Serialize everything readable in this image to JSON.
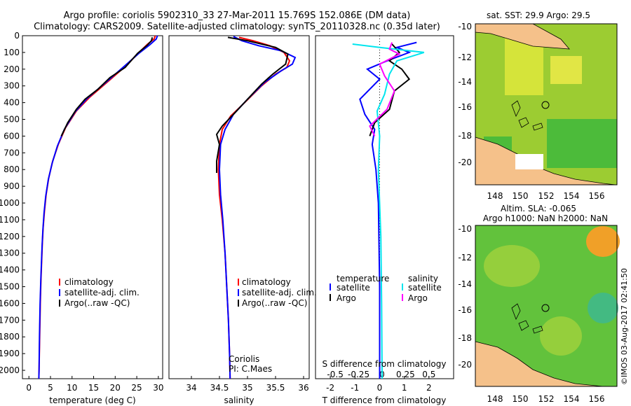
{
  "title": {
    "line1": "Argo profile: coriolis 5902310_33 27-Mar-2011 15.769S 152.086E (DM data)",
    "line2": "Climatology: CARS2009. Satellite-adjusted climatology: synTS_20110328.nc (0.35d later)"
  },
  "colors": {
    "climatology": "#ff0000",
    "satellite": "#0000ff",
    "argo": "#000000",
    "sal_satellite": "#00e5ee",
    "sal_argo": "#ff00ff"
  },
  "chart_data": [
    {
      "type": "line",
      "id": "temperature",
      "xlabel": "temperature (deg C)",
      "xlim": [
        -1.5,
        31
      ],
      "xticks": [
        0,
        5,
        10,
        15,
        20,
        25,
        30
      ],
      "ylim": [
        0,
        2050
      ],
      "yticks": [
        0,
        100,
        200,
        300,
        400,
        500,
        600,
        700,
        800,
        900,
        1000,
        1100,
        1200,
        1300,
        1400,
        1500,
        1600,
        1700,
        1800,
        1900,
        2000
      ],
      "legend": [
        "climatology",
        "satellite-adj. clim.",
        "Argo(..raw -QC)"
      ],
      "series": [
        {
          "name": "climatology",
          "color_key": "climatology",
          "points": [
            [
              29.3,
              0
            ],
            [
              29,
              20
            ],
            [
              27.5,
              50
            ],
            [
              25.5,
              100
            ],
            [
              22.5,
              180
            ],
            [
              18.5,
              270
            ],
            [
              14,
              370
            ],
            [
              11,
              450
            ],
            [
              8.5,
              550
            ],
            [
              6.8,
              650
            ],
            [
              5.5,
              750
            ],
            [
              4.6,
              850
            ],
            [
              4,
              950
            ],
            [
              3.6,
              1050
            ],
            [
              3.3,
              1150
            ],
            [
              3.1,
              1250
            ],
            [
              2.95,
              1350
            ],
            [
              2.8,
              1450
            ],
            [
              2.65,
              1600
            ],
            [
              2.5,
              1800
            ],
            [
              2.35,
              2000
            ],
            [
              2.3,
              2050
            ]
          ]
        },
        {
          "name": "satellite-adj. clim.",
          "color_key": "satellite",
          "points": [
            [
              29.8,
              0
            ],
            [
              29.5,
              20
            ],
            [
              28,
              55
            ],
            [
              25.5,
              105
            ],
            [
              22,
              185
            ],
            [
              18,
              275
            ],
            [
              13.5,
              375
            ],
            [
              10.7,
              455
            ],
            [
              8.2,
              560
            ],
            [
              6.6,
              660
            ],
            [
              5.4,
              760
            ],
            [
              4.5,
              860
            ],
            [
              3.9,
              960
            ],
            [
              3.5,
              1060
            ],
            [
              3.25,
              1160
            ],
            [
              3.05,
              1260
            ],
            [
              2.9,
              1360
            ],
            [
              2.75,
              1460
            ],
            [
              2.6,
              1600
            ],
            [
              2.45,
              1800
            ],
            [
              2.35,
              2000
            ],
            [
              2.3,
              2050
            ]
          ]
        },
        {
          "name": "Argo(..raw -QC)",
          "color_key": "argo",
          "points": [
            [
              28.6,
              10
            ],
            [
              28.4,
              30
            ],
            [
              27.5,
              55
            ],
            [
              25.2,
              105
            ],
            [
              22.3,
              190
            ],
            [
              18.8,
              250
            ],
            [
              16,
              320
            ],
            [
              13,
              380
            ],
            [
              11,
              440
            ],
            [
              9,
              520
            ],
            [
              7.5,
              600
            ]
          ]
        }
      ]
    },
    {
      "type": "line",
      "id": "salinity",
      "xlabel": "salinity",
      "xlim": [
        33.6,
        36.1
      ],
      "xticks": [
        34,
        34.5,
        35,
        35.5,
        36
      ],
      "ylim": [
        0,
        2050
      ],
      "legend": [
        "climatology",
        "satellite-adj. clim.",
        "Argo(..raw -QC)"
      ],
      "annotation": [
        "Coriolis",
        "PI: C.Maes"
      ],
      "series": [
        {
          "name": "climatology",
          "color_key": "climatology",
          "points": [
            [
              34.85,
              10
            ],
            [
              35.1,
              30
            ],
            [
              35.4,
              60
            ],
            [
              35.65,
              100
            ],
            [
              35.75,
              150
            ],
            [
              35.7,
              190
            ],
            [
              35.5,
              230
            ],
            [
              35.25,
              300
            ],
            [
              34.95,
              400
            ],
            [
              34.7,
              480
            ],
            [
              34.55,
              560
            ],
            [
              34.5,
              650
            ],
            [
              34.48,
              800
            ],
            [
              34.5,
              950
            ],
            [
              34.55,
              1100
            ],
            [
              34.6,
              1300
            ],
            [
              34.63,
              1500
            ],
            [
              34.66,
              1700
            ],
            [
              34.68,
              1900
            ],
            [
              34.69,
              2050
            ]
          ]
        },
        {
          "name": "satellite-adj. clim.",
          "color_key": "satellite",
          "points": [
            [
              34.75,
              5
            ],
            [
              34.9,
              30
            ],
            [
              35.2,
              60
            ],
            [
              35.6,
              90
            ],
            [
              35.85,
              130
            ],
            [
              35.8,
              170
            ],
            [
              35.6,
              210
            ],
            [
              35.3,
              280
            ],
            [
              35,
              380
            ],
            [
              34.75,
              470
            ],
            [
              34.6,
              560
            ],
            [
              34.52,
              650
            ],
            [
              34.5,
              800
            ],
            [
              34.52,
              950
            ],
            [
              34.56,
              1100
            ],
            [
              34.6,
              1300
            ],
            [
              34.63,
              1500
            ],
            [
              34.66,
              1700
            ],
            [
              34.68,
              1900
            ],
            [
              34.69,
              2050
            ]
          ]
        },
        {
          "name": "Argo(..raw -QC)",
          "color_key": "argo",
          "points": [
            [
              34.65,
              10
            ],
            [
              35,
              30
            ],
            [
              35.5,
              70
            ],
            [
              35.72,
              110
            ],
            [
              35.68,
              170
            ],
            [
              35.45,
              230
            ],
            [
              35.25,
              290
            ],
            [
              35,
              380
            ],
            [
              34.75,
              470
            ],
            [
              34.55,
              540
            ],
            [
              34.45,
              590
            ],
            [
              34.5,
              650
            ],
            [
              34.45,
              750
            ],
            [
              34.45,
              820
            ]
          ]
        }
      ]
    },
    {
      "type": "line",
      "id": "difference",
      "xlabel": "T difference from climatology",
      "xlabel2": "S difference from climatology",
      "xlim": [
        -2.6,
        3
      ],
      "xticks": [
        -2,
        -1,
        0,
        1,
        2
      ],
      "xticks_s": [
        -0.5,
        -0.25,
        0,
        0.25,
        0.5
      ],
      "ylim": [
        0,
        2050
      ],
      "legend_temperature": {
        "title": "temperature",
        "items": [
          "satellite",
          "Argo"
        ]
      },
      "legend_salinity": {
        "title": "salinity",
        "items": [
          "satellite",
          "Argo"
        ]
      },
      "series": [
        {
          "name": "temperature satellite",
          "color_key": "satellite",
          "points": [
            [
              1.5,
              40
            ],
            [
              0.7,
              70
            ],
            [
              1.2,
              100
            ],
            [
              0.3,
              150
            ],
            [
              -0.5,
              200
            ],
            [
              0,
              260
            ],
            [
              -0.8,
              380
            ],
            [
              -0.6,
              470
            ],
            [
              -0.2,
              560
            ],
            [
              -0.3,
              650
            ],
            [
              -0.15,
              800
            ],
            [
              -0.05,
              1000
            ],
            [
              0,
              1500
            ],
            [
              0,
              2050
            ]
          ]
        },
        {
          "name": "temperature Argo",
          "color_key": "argo",
          "points": [
            [
              0.5,
              50
            ],
            [
              0.8,
              100
            ],
            [
              0.4,
              150
            ],
            [
              0.9,
              200
            ],
            [
              1.2,
              260
            ],
            [
              0.6,
              330
            ],
            [
              0.4,
              440
            ],
            [
              -0.2,
              520
            ],
            [
              -0.4,
              600
            ]
          ]
        },
        {
          "name": "salinity satellite",
          "color_key": "sal_satellite",
          "points": [
            [
              -1.1,
              50
            ],
            [
              0,
              70
            ],
            [
              1.8,
              100
            ],
            [
              0.7,
              150
            ],
            [
              0.4,
              230
            ],
            [
              0.2,
              350
            ],
            [
              -0.1,
              450
            ],
            [
              0,
              600
            ],
            [
              -0.05,
              800
            ],
            [
              0.05,
              1200
            ],
            [
              0.08,
              1600
            ],
            [
              0.1,
              2050
            ]
          ]
        },
        {
          "name": "salinity Argo",
          "color_key": "sal_argo",
          "points": [
            [
              0.5,
              40
            ],
            [
              0.4,
              80
            ],
            [
              0.8,
              110
            ],
            [
              0,
              170
            ],
            [
              0.2,
              240
            ],
            [
              0.6,
              330
            ],
            [
              0.3,
              440
            ],
            [
              -0.4,
              540
            ],
            [
              -0.2,
              600
            ]
          ]
        }
      ]
    }
  ],
  "maps": {
    "top": {
      "title": "sat. SST: 29.9  Argo: 29.5",
      "yticks": [
        "-10",
        "-12",
        "-14",
        "-16",
        "-18",
        "-20"
      ],
      "xticks": [
        "148",
        "150",
        "152",
        "154",
        "156"
      ]
    },
    "bottom": {
      "title_line1": "Altim. SLA: -0.065",
      "title_line2": "Argo h1000: NaN h2000: NaN",
      "yticks": [
        "-10",
        "-12",
        "-14",
        "-16",
        "-18",
        "-20"
      ],
      "xticks": [
        "148",
        "150",
        "152",
        "154",
        "156"
      ]
    }
  },
  "credit": "©IMOS 03-Aug-2017 02:41:50"
}
